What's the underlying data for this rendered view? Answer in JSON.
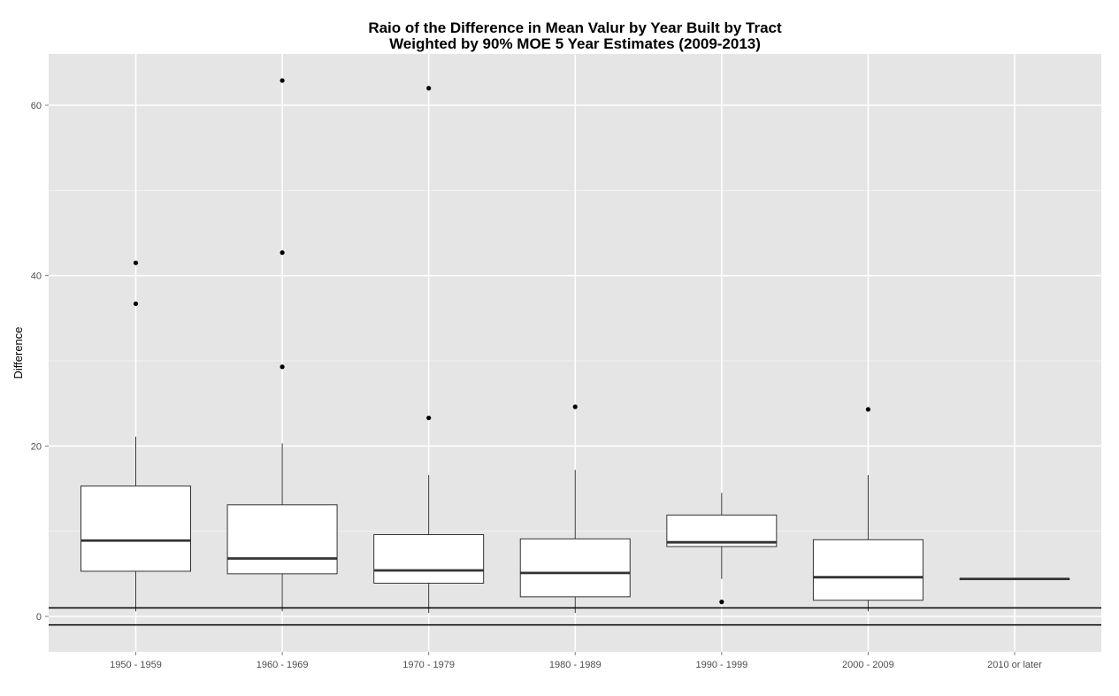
{
  "chart_data": {
    "type": "boxplot",
    "title": "Raio of the Difference in Mean Valur by Year Built by Tract",
    "subtitle": "Weighted by 90% MOE 5 Year Estimates (2009-2013)",
    "xlabel": "",
    "ylabel": "Difference",
    "ylim": [
      -4.2,
      66
    ],
    "yticks": [
      0,
      20,
      40,
      60
    ],
    "ytick_labels": [
      "0",
      "20",
      "40",
      "60"
    ],
    "grid": true,
    "background": "#e5e5e5",
    "gridline_color": "#ffffff",
    "categories": [
      "1950 - 1959",
      "1960 - 1969",
      "1970 - 1979",
      "1980 - 1989",
      "1990 - 1999",
      "2000 - 2009",
      "2010 or later"
    ],
    "boxes": [
      {
        "category": "1950 - 1959",
        "whisker_low": 0.6,
        "q1": 5.3,
        "median": 8.9,
        "q3": 15.3,
        "whisker_high": 21.1,
        "outliers": [
          36.7,
          41.5
        ]
      },
      {
        "category": "1960 - 1969",
        "whisker_low": 0.6,
        "q1": 5.0,
        "median": 6.8,
        "q3": 13.1,
        "whisker_high": 20.3,
        "outliers": [
          29.3,
          42.7,
          62.9
        ]
      },
      {
        "category": "1970 - 1979",
        "whisker_low": 0.4,
        "q1": 3.9,
        "median": 5.4,
        "q3": 9.6,
        "whisker_high": 16.6,
        "outliers": [
          23.3,
          62.0
        ]
      },
      {
        "category": "1980 - 1989",
        "whisker_low": 0.4,
        "q1": 2.3,
        "median": 5.1,
        "q3": 9.1,
        "whisker_high": 17.2,
        "outliers": [
          24.6
        ]
      },
      {
        "category": "1990 - 1999",
        "whisker_low": 4.4,
        "q1": 8.2,
        "median": 8.7,
        "q3": 11.9,
        "whisker_high": 14.5,
        "outliers": [
          1.7
        ]
      },
      {
        "category": "2000 - 2009",
        "whisker_low": 0.6,
        "q1": 1.9,
        "median": 4.6,
        "q3": 9.0,
        "whisker_high": 16.6,
        "outliers": [
          24.3
        ]
      },
      {
        "category": "2010 or later",
        "whisker_low": 4.4,
        "q1": 4.4,
        "median": 4.4,
        "q3": 4.4,
        "whisker_high": 4.4,
        "outliers": []
      }
    ],
    "reference_lines": [
      1.0,
      -1.0
    ]
  }
}
